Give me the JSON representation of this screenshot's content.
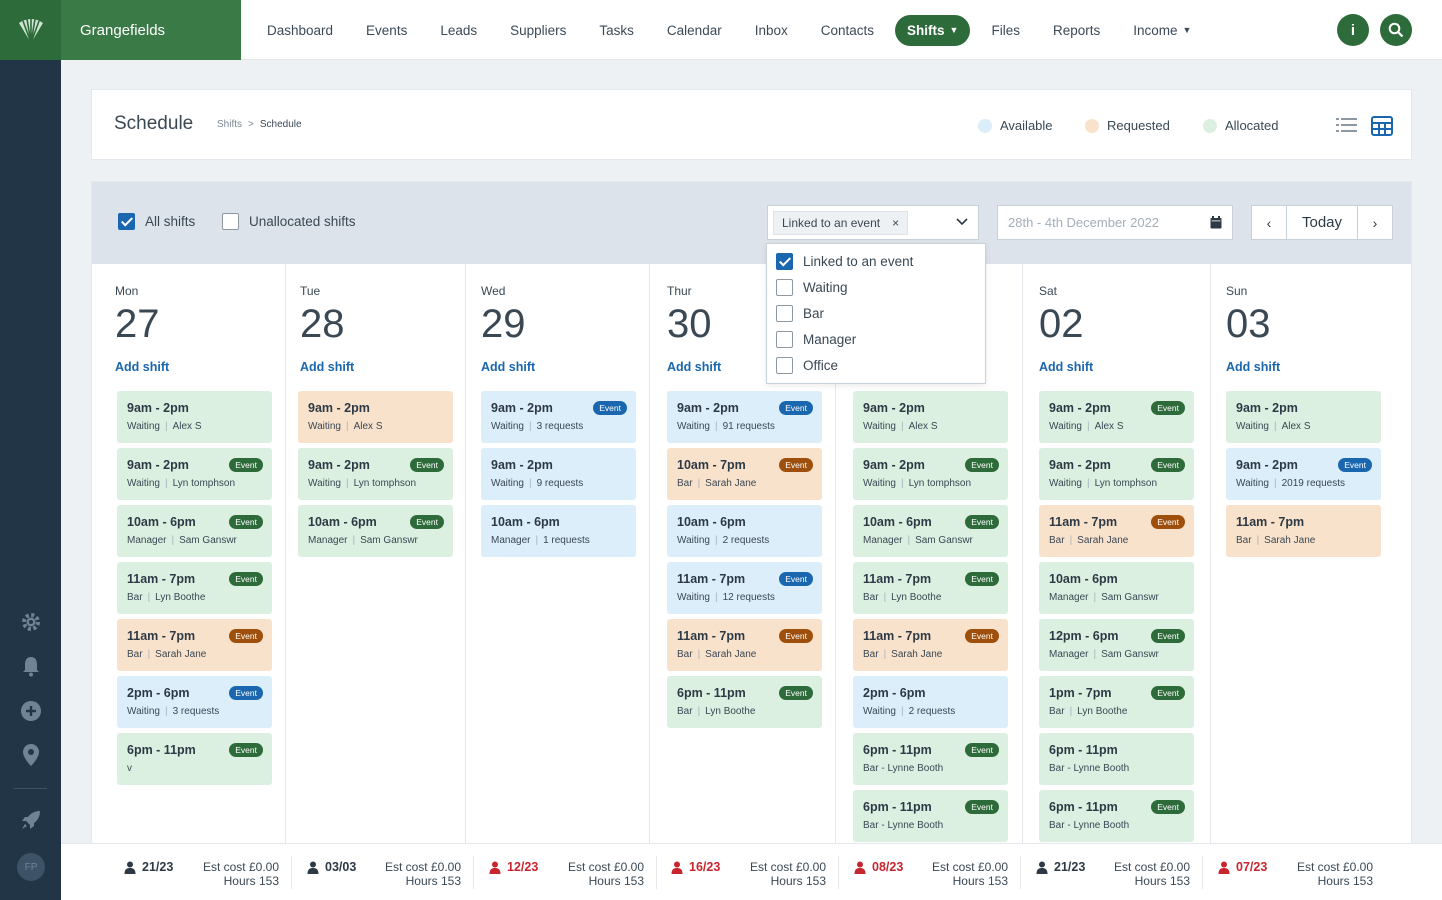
{
  "brand": {
    "name": "Grangefields"
  },
  "nav": [
    {
      "label": "Dashboard"
    },
    {
      "label": "Events"
    },
    {
      "label": "Leads"
    },
    {
      "label": "Suppliers"
    },
    {
      "label": "Tasks"
    },
    {
      "label": "Calendar"
    },
    {
      "label": "Inbox"
    },
    {
      "label": "Contacts"
    },
    {
      "label": "Shifts"
    },
    {
      "label": "Files"
    },
    {
      "label": "Reports"
    },
    {
      "label": "Income"
    }
  ],
  "header": {
    "title": "Schedule",
    "breadcrumb_parent": "Shifts",
    "breadcrumb_sep": ">",
    "breadcrumb_current": "Schedule",
    "legend": [
      {
        "label": "Available",
        "color": "#dbeefa"
      },
      {
        "label": "Requested",
        "color": "#f9e2cb"
      },
      {
        "label": "Allocated",
        "color": "#dcf0e1"
      }
    ]
  },
  "toolbar": {
    "all_shifts_label": "All shifts",
    "all_shifts_checked": true,
    "unallocated_label": "Unallocated shifts",
    "unallocated_checked": false,
    "filter_tag": "Linked to an event",
    "filter_tag_remove": "×",
    "date_placeholder": "28th - 4th December 2022",
    "today_label": "Today",
    "prev_label": "‹",
    "next_label": "›"
  },
  "filter_options": [
    {
      "label": "Linked to an event",
      "checked": true
    },
    {
      "label": "Waiting",
      "checked": false
    },
    {
      "label": "Bar",
      "checked": false
    },
    {
      "label": "Manager",
      "checked": false
    },
    {
      "label": "Office",
      "checked": false
    }
  ],
  "add_shift_label": "Add shift",
  "days": [
    {
      "name": "Mon",
      "num": "27",
      "shifts": [
        {
          "time": "9am - 2pm",
          "role": "Waiting",
          "who": "Alex S",
          "status": "allocated",
          "event": ""
        },
        {
          "time": "9am - 2pm",
          "role": "Waiting",
          "who": "Lyn tomphson",
          "status": "allocated",
          "event": "Event"
        },
        {
          "time": "10am - 6pm",
          "role": "Manager",
          "who": "Sam Ganswr",
          "status": "allocated",
          "event": "Event"
        },
        {
          "time": "11am - 7pm",
          "role": "Bar",
          "who": "Lyn Boothe",
          "status": "allocated",
          "event": "Event"
        },
        {
          "time": "11am - 7pm",
          "role": "Bar",
          "who": "Sarah Jane",
          "status": "requested",
          "event": "Event"
        },
        {
          "time": "2pm - 6pm",
          "role": "Waiting",
          "who": "3 requests",
          "status": "available",
          "event": "Event"
        },
        {
          "time": "6pm - 11pm",
          "role": "v",
          "who": "",
          "status": "allocated",
          "event": "Event"
        }
      ]
    },
    {
      "name": "Tue",
      "num": "28",
      "shifts": [
        {
          "time": "9am - 2pm",
          "role": "Waiting",
          "who": "Alex S",
          "status": "requested",
          "event": ""
        },
        {
          "time": "9am - 2pm",
          "role": "Waiting",
          "who": "Lyn tomphson",
          "status": "allocated",
          "event": "Event"
        },
        {
          "time": "10am - 6pm",
          "role": "Manager",
          "who": "Sam Ganswr",
          "status": "allocated",
          "event": "Event"
        }
      ]
    },
    {
      "name": "Wed",
      "num": "29",
      "shifts": [
        {
          "time": "9am - 2pm",
          "role": "Waiting",
          "who": "3 requests",
          "status": "available",
          "event": "Event"
        },
        {
          "time": "9am - 2pm",
          "role": "Waiting",
          "who": "9 requests",
          "status": "available",
          "event": ""
        },
        {
          "time": "10am - 6pm",
          "role": "Manager",
          "who": "1 requests",
          "status": "available",
          "event": ""
        }
      ]
    },
    {
      "name": "Thur",
      "num": "30",
      "shifts": [
        {
          "time": "9am - 2pm",
          "role": "Waiting",
          "who": "91 requests",
          "status": "available",
          "event": "Event"
        },
        {
          "time": "10am - 7pm",
          "role": "Bar",
          "who": "Sarah Jane",
          "status": "requested",
          "event": "Event"
        },
        {
          "time": "10am - 6pm",
          "role": "Waiting",
          "who": "2 requests",
          "status": "available",
          "event": ""
        },
        {
          "time": "11am - 7pm",
          "role": "Waiting",
          "who": "12 requests",
          "status": "available",
          "event": "Event"
        },
        {
          "time": "11am - 7pm",
          "role": "Bar",
          "who": "Sarah Jane",
          "status": "requested",
          "event": "Event"
        },
        {
          "time": "6pm - 11pm",
          "role": "Bar",
          "who": "Lyn Boothe",
          "status": "allocated",
          "event": "Event"
        }
      ]
    },
    {
      "name": "",
      "num": "",
      "shifts": [
        {
          "time": "9am - 2pm",
          "role": "Waiting",
          "who": "Alex S",
          "status": "allocated",
          "event": ""
        },
        {
          "time": "9am - 2pm",
          "role": "Waiting",
          "who": "Lyn tomphson",
          "status": "allocated",
          "event": "Event"
        },
        {
          "time": "10am - 6pm",
          "role": "Manager",
          "who": "Sam Ganswr",
          "status": "allocated",
          "event": "Event"
        },
        {
          "time": "11am - 7pm",
          "role": "Bar",
          "who": "Lyn Boothe",
          "status": "allocated",
          "event": "Event"
        },
        {
          "time": "11am - 7pm",
          "role": "Bar",
          "who": "Sarah Jane",
          "status": "requested",
          "event": "Event"
        },
        {
          "time": "2pm - 6pm",
          "role": "Waiting",
          "who": "2 requests",
          "status": "available",
          "event": ""
        },
        {
          "time": "6pm - 11pm",
          "role": "Bar - Lynne Booth",
          "who": "",
          "status": "allocated",
          "event": "Event"
        },
        {
          "time": "6pm - 11pm",
          "role": "Bar - Lynne Booth",
          "who": "",
          "status": "allocated",
          "event": "Event"
        }
      ]
    },
    {
      "name": "Sat",
      "num": "02",
      "shifts": [
        {
          "time": "9am - 2pm",
          "role": "Waiting",
          "who": "Alex S",
          "status": "allocated",
          "event": "Event"
        },
        {
          "time": "9am - 2pm",
          "role": "Waiting",
          "who": "Lyn tomphson",
          "status": "allocated",
          "event": "Event"
        },
        {
          "time": "11am - 7pm",
          "role": "Bar",
          "who": "Sarah Jane",
          "status": "requested",
          "event": "Event"
        },
        {
          "time": "10am - 6pm",
          "role": "Manager",
          "who": "Sam Ganswr",
          "status": "allocated",
          "event": ""
        },
        {
          "time": "12pm - 6pm",
          "role": "Manager",
          "who": "Sam Ganswr",
          "status": "allocated",
          "event": "Event"
        },
        {
          "time": "1pm - 7pm",
          "role": "Bar",
          "who": "Lyn Boothe",
          "status": "allocated",
          "event": "Event"
        },
        {
          "time": "6pm - 11pm",
          "role": "Bar - Lynne Booth",
          "who": "",
          "status": "allocated",
          "event": ""
        },
        {
          "time": "6pm - 11pm",
          "role": "Bar - Lynne Booth",
          "who": "",
          "status": "allocated",
          "event": "Event"
        }
      ]
    },
    {
      "name": "Sun",
      "num": "03",
      "shifts": [
        {
          "time": "9am - 2pm",
          "role": "Waiting",
          "who": "Alex S",
          "status": "allocated",
          "event": ""
        },
        {
          "time": "9am - 2pm",
          "role": "Waiting",
          "who": "2019 requests",
          "status": "available",
          "event": "Event"
        },
        {
          "time": "11am - 7pm",
          "role": "Bar",
          "who": "Sarah Jane",
          "status": "requested",
          "event": ""
        }
      ]
    }
  ],
  "footer": [
    {
      "count": "21/23",
      "alert": false,
      "cost": "Est cost £0.00",
      "hours": "Hours 153"
    },
    {
      "count": "03/03",
      "alert": false,
      "cost": "Est cost £0.00",
      "hours": "Hours 153"
    },
    {
      "count": "12/23",
      "alert": true,
      "cost": "Est cost £0.00",
      "hours": "Hours 153"
    },
    {
      "count": "16/23",
      "alert": true,
      "cost": "Est cost £0.00",
      "hours": "Hours 153"
    },
    {
      "count": "08/23",
      "alert": true,
      "cost": "Est cost £0.00",
      "hours": "Hours 153"
    },
    {
      "count": "21/23",
      "alert": false,
      "cost": "Est cost £0.00",
      "hours": "Hours 153"
    },
    {
      "count": "07/23",
      "alert": true,
      "cost": "Est cost £0.00",
      "hours": "Hours 153"
    }
  ],
  "user": {
    "initials": "FP"
  },
  "colors": {
    "brand": "#2e6b3a",
    "accent": "#1a67b0",
    "alert": "#c7262f",
    "available": "#dbeefa",
    "requested": "#f9e2cb",
    "allocated": "#dcf0e1"
  }
}
